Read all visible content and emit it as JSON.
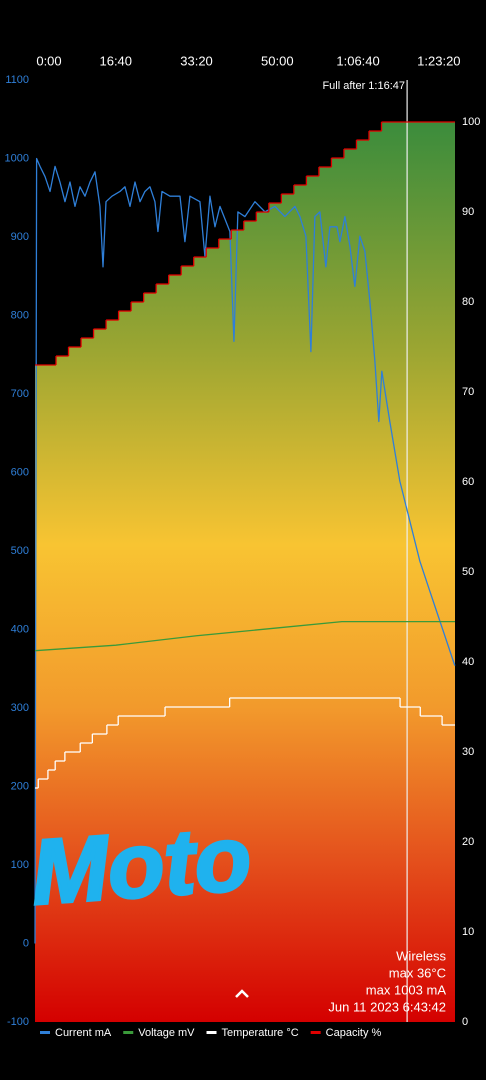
{
  "chart_data": {
    "type": "line",
    "xlim": [
      0,
      5200
    ],
    "xticks": [
      {
        "value": 0,
        "label": "0:00"
      },
      {
        "value": 1000,
        "label": "16:40"
      },
      {
        "value": 2000,
        "label": "33:20"
      },
      {
        "value": 3000,
        "label": "50:00"
      },
      {
        "value": 4000,
        "label": "1:06:40"
      },
      {
        "value": 5000,
        "label": "1:23:20"
      }
    ],
    "ylim": [
      -100,
      1100
    ],
    "yticks": [
      -100,
      0,
      100,
      200,
      300,
      400,
      500,
      600,
      700,
      800,
      900,
      1000,
      1100
    ],
    "y2lim": [
      0,
      104.67
    ],
    "y2ticks": [
      0,
      10,
      20,
      30,
      40,
      50,
      60,
      70,
      80,
      90,
      100
    ],
    "series": [
      {
        "name": "Current mA",
        "color": "#2f7fd8",
        "x": [
          0,
          20,
          62,
          124,
          186,
          248,
          309,
          371,
          433,
          495,
          557,
          619,
          681,
          743,
          804,
          842,
          879,
          953,
          1052,
          1114,
          1176,
          1238,
          1300,
          1361,
          1423,
          1485,
          1522,
          1572,
          1671,
          1795,
          1856,
          1918,
          2042,
          2104,
          2166,
          2228,
          2290,
          2413,
          2463,
          2512,
          2599,
          2723,
          2847,
          2970,
          3094,
          3218,
          3280,
          3354,
          3416,
          3465,
          3527,
          3601,
          3651,
          3738,
          3775,
          3837,
          3899,
          3960,
          4022,
          4084,
          4146,
          4208,
          4257,
          4294,
          4393,
          4517,
          4641,
          4765,
          4888,
          5012,
          5198
        ],
        "values": [
          0,
          1000,
          990,
          977,
          958,
          990,
          970,
          945,
          970,
          939,
          964,
          952,
          970,
          983,
          939,
          862,
          945,
          952,
          958,
          964,
          939,
          970,
          945,
          958,
          964,
          945,
          907,
          958,
          952,
          952,
          894,
          952,
          945,
          875,
          952,
          913,
          939,
          907,
          767,
          932,
          926,
          945,
          932,
          939,
          926,
          939,
          926,
          901,
          754,
          926,
          932,
          862,
          913,
          913,
          894,
          926,
          888,
          837,
          901,
          882,
          818,
          742,
          665,
          729,
          665,
          589,
          538,
          487,
          449,
          411,
          354
        ]
      },
      {
        "name": "Voltage mV",
        "color": "#3a9a3a",
        "x": [
          0,
          1000,
          2000,
          3000,
          3800,
          5200
        ],
        "values": [
          373,
          380,
          392,
          402,
          410,
          410
        ]
      },
      {
        "name": "Temperature °C",
        "color": "#ffffff",
        "axis": "y2",
        "x": [
          0,
          40,
          160,
          250,
          370,
          560,
          710,
          890,
          1030,
          1610,
          2410,
          4520,
          4770,
          5040,
          5200
        ],
        "values": [
          26,
          27,
          28,
          29,
          30,
          31,
          32,
          33,
          34,
          35,
          36,
          35,
          34,
          33,
          33
        ]
      },
      {
        "name": "Capacity %",
        "color": "#e00000",
        "axis": "y2",
        "x": [
          0,
          260,
          415,
          570,
          725,
          880,
          1035,
          1190,
          1345,
          1500,
          1655,
          1810,
          1965,
          2120,
          2275,
          2430,
          2585,
          2740,
          2895,
          3050,
          3205,
          3360,
          3515,
          3670,
          3825,
          3980,
          4135,
          4290,
          5200
        ],
        "values": [
          73,
          74,
          75,
          76,
          77,
          78,
          79,
          80,
          81,
          82,
          83,
          84,
          85,
          86,
          87,
          88,
          89,
          90,
          91,
          92,
          93,
          94,
          95,
          96,
          97,
          98,
          99,
          100,
          100
        ]
      }
    ],
    "full_marker": {
      "x": 4607,
      "label": "Full after 1:16:47"
    },
    "info": [
      "Wireless",
      "max 36°C",
      "max 1003 mA",
      "Jun 11 2023 6:43:42"
    ],
    "scribble": "Moto"
  }
}
